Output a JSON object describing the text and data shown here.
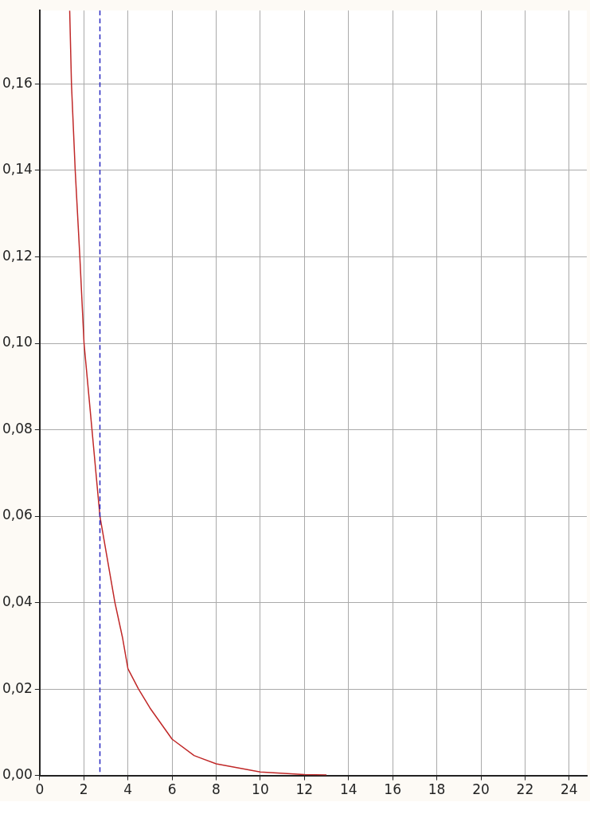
{
  "chart_data": {
    "type": "line",
    "x": [
      1.36,
      1.44,
      1.61,
      1.82,
      2.01,
      2.37,
      2.73,
      3.41,
      3.75,
      4,
      4.48,
      5,
      6,
      7,
      8,
      10,
      12,
      13
    ],
    "series": [
      {
        "color": "#c02828",
        "values": [
          0.177,
          0.16,
          0.14,
          0.12,
          0.1,
          0.08,
          0.06,
          0.04,
          0.032,
          0.0247,
          0.02,
          0.0156,
          0.0084,
          0.0046,
          0.0027,
          0.0008,
          0.0002,
          0.0001
        ]
      }
    ],
    "xlim": [
      0,
      24.8
    ],
    "xticks": [
      0,
      2,
      4,
      6,
      8,
      10,
      12,
      14,
      16,
      18,
      20,
      22,
      24
    ],
    "ylim": [
      0,
      0.177
    ],
    "yticks": [
      {
        "value": 0,
        "label": "0,00"
      },
      {
        "value": 0.02,
        "label": "0,02"
      },
      {
        "value": 0.04,
        "label": "0,04"
      },
      {
        "value": 0.06,
        "label": "0,06"
      },
      {
        "value": 0.08,
        "label": "0,08"
      },
      {
        "value": 0.1,
        "label": "0,10"
      },
      {
        "value": 0.12,
        "label": "0,12"
      },
      {
        "value": 0.14,
        "label": "0,14"
      },
      {
        "value": 0.16,
        "label": "0,16"
      }
    ],
    "grid": true,
    "legend": false,
    "marker": "none",
    "line_style": "solid",
    "ref_lines": [
      {
        "axis": "x",
        "value": 2.73,
        "color": "#2828c0",
        "line_style": "dashed"
      }
    ]
  }
}
